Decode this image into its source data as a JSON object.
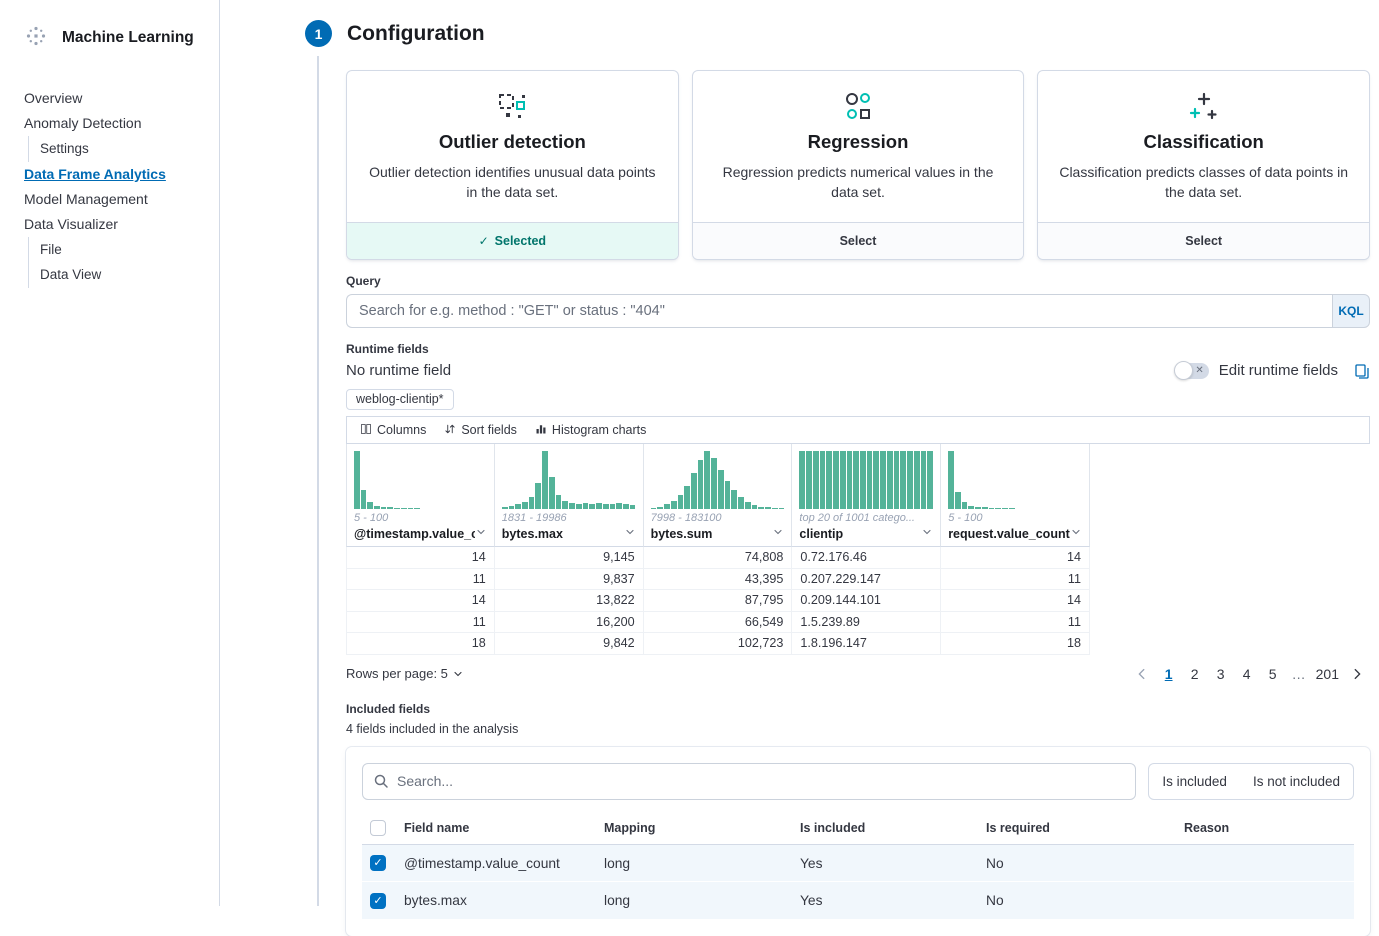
{
  "colors": {
    "accent": "#006BB4",
    "success_text": "#00756B",
    "success_bg": "#E6F9F5",
    "hist_bar": "#54B399",
    "selected_row_bg": "#F1F7FC"
  },
  "icons": {
    "check": "✓",
    "cross": "✕"
  },
  "sidebar": {
    "title": "Machine Learning",
    "items": [
      {
        "label": "Overview",
        "indent": false,
        "active": false
      },
      {
        "label": "Anomaly Detection",
        "indent": false,
        "active": false
      },
      {
        "label": "Settings",
        "indent": true,
        "active": false
      },
      {
        "label": "Data Frame Analytics",
        "indent": false,
        "active": true
      },
      {
        "label": "Model Management",
        "indent": false,
        "active": false
      },
      {
        "label": "Data Visualizer",
        "indent": false,
        "active": false
      },
      {
        "label": "File",
        "indent": true,
        "active": false
      },
      {
        "label": "Data View",
        "indent": true,
        "active": false
      }
    ]
  },
  "step": {
    "number": "1",
    "title": "Configuration"
  },
  "cards": [
    {
      "title": "Outlier detection",
      "description": "Outlier detection identifies unusual data points in the data set.",
      "footer": "Selected",
      "selected": true,
      "icon": "outlier-detection-icon"
    },
    {
      "title": "Regression",
      "description": "Regression predicts numerical values in the data set.",
      "footer": "Select",
      "selected": false,
      "icon": "regression-icon"
    },
    {
      "title": "Classification",
      "description": "Classification predicts classes of data points in the data set.",
      "footer": "Select",
      "selected": false,
      "icon": "classification-icon"
    }
  ],
  "query": {
    "label": "Query",
    "placeholder": "Search for e.g. method : \"GET\" or status : \"404\"",
    "language": "KQL"
  },
  "runtime_fields": {
    "label": "Runtime fields",
    "status": "No runtime field",
    "edit_label": "Edit runtime fields"
  },
  "index_badge": "weblog-clientip*",
  "grid": {
    "toolbar": [
      {
        "label": "Columns",
        "icon": "columns-icon"
      },
      {
        "label": "Sort fields",
        "icon": "sort-icon"
      },
      {
        "label": "Histogram charts",
        "icon": "histogram-icon"
      }
    ],
    "columns": [
      {
        "name": "@timestamp.value_cou",
        "range": "5 - 100",
        "kind": "number",
        "hist": [
          100,
          32,
          12,
          6,
          4,
          3,
          2,
          1,
          1,
          1,
          0,
          0,
          0,
          0,
          0,
          0,
          0,
          0,
          0,
          0
        ]
      },
      {
        "name": "bytes.max",
        "range": "1831 - 19986",
        "kind": "number",
        "hist": [
          4,
          5,
          8,
          12,
          20,
          45,
          100,
          55,
          25,
          14,
          10,
          9,
          11,
          8,
          10,
          9,
          8,
          10,
          8,
          7
        ]
      },
      {
        "name": "bytes.sum",
        "range": "7998 - 183100",
        "kind": "number",
        "hist": [
          2,
          4,
          8,
          14,
          24,
          40,
          62,
          85,
          100,
          88,
          68,
          48,
          32,
          20,
          12,
          7,
          4,
          3,
          2,
          1
        ]
      },
      {
        "name": "clientip",
        "range": "top 20 of 1001 catego...",
        "kind": "text",
        "hist": [
          100,
          100,
          100,
          100,
          100,
          100,
          100,
          100,
          100,
          100,
          100,
          100,
          100,
          100,
          100,
          100,
          100,
          100,
          100,
          100
        ]
      },
      {
        "name": "request.value_count",
        "range": "5 - 100",
        "kind": "number",
        "hist": [
          100,
          30,
          12,
          6,
          4,
          3,
          2,
          1,
          1,
          1,
          0,
          0,
          0,
          0,
          0,
          0,
          0,
          0,
          0,
          0
        ]
      }
    ],
    "rows": [
      [
        "14",
        "9,145",
        "74,808",
        "0.72.176.46",
        "14"
      ],
      [
        "11",
        "9,837",
        "43,395",
        "0.207.229.147",
        "11"
      ],
      [
        "14",
        "13,822",
        "87,795",
        "0.209.144.101",
        "14"
      ],
      [
        "11",
        "16,200",
        "66,549",
        "1.5.239.89",
        "11"
      ],
      [
        "18",
        "9,842",
        "102,723",
        "1.8.196.147",
        "18"
      ]
    ],
    "pagination": {
      "rows_per_page": "Rows per page: 5",
      "pages": [
        "1",
        "2",
        "3",
        "4",
        "5",
        "…",
        "201"
      ],
      "active": "1"
    }
  },
  "included_fields": {
    "label": "Included fields",
    "subtitle": "4 fields included in the analysis",
    "search_placeholder": "Search...",
    "filters": [
      "Is included",
      "Is not included"
    ],
    "table": {
      "headers": [
        "Field name",
        "Mapping",
        "Is included",
        "Is required",
        "Reason"
      ],
      "rows": [
        {
          "checked": true,
          "field": "@timestamp.value_count",
          "mapping": "long",
          "included": "Yes",
          "required": "No",
          "reason": ""
        },
        {
          "checked": true,
          "field": "bytes.max",
          "mapping": "long",
          "included": "Yes",
          "required": "No",
          "reason": ""
        }
      ]
    }
  }
}
